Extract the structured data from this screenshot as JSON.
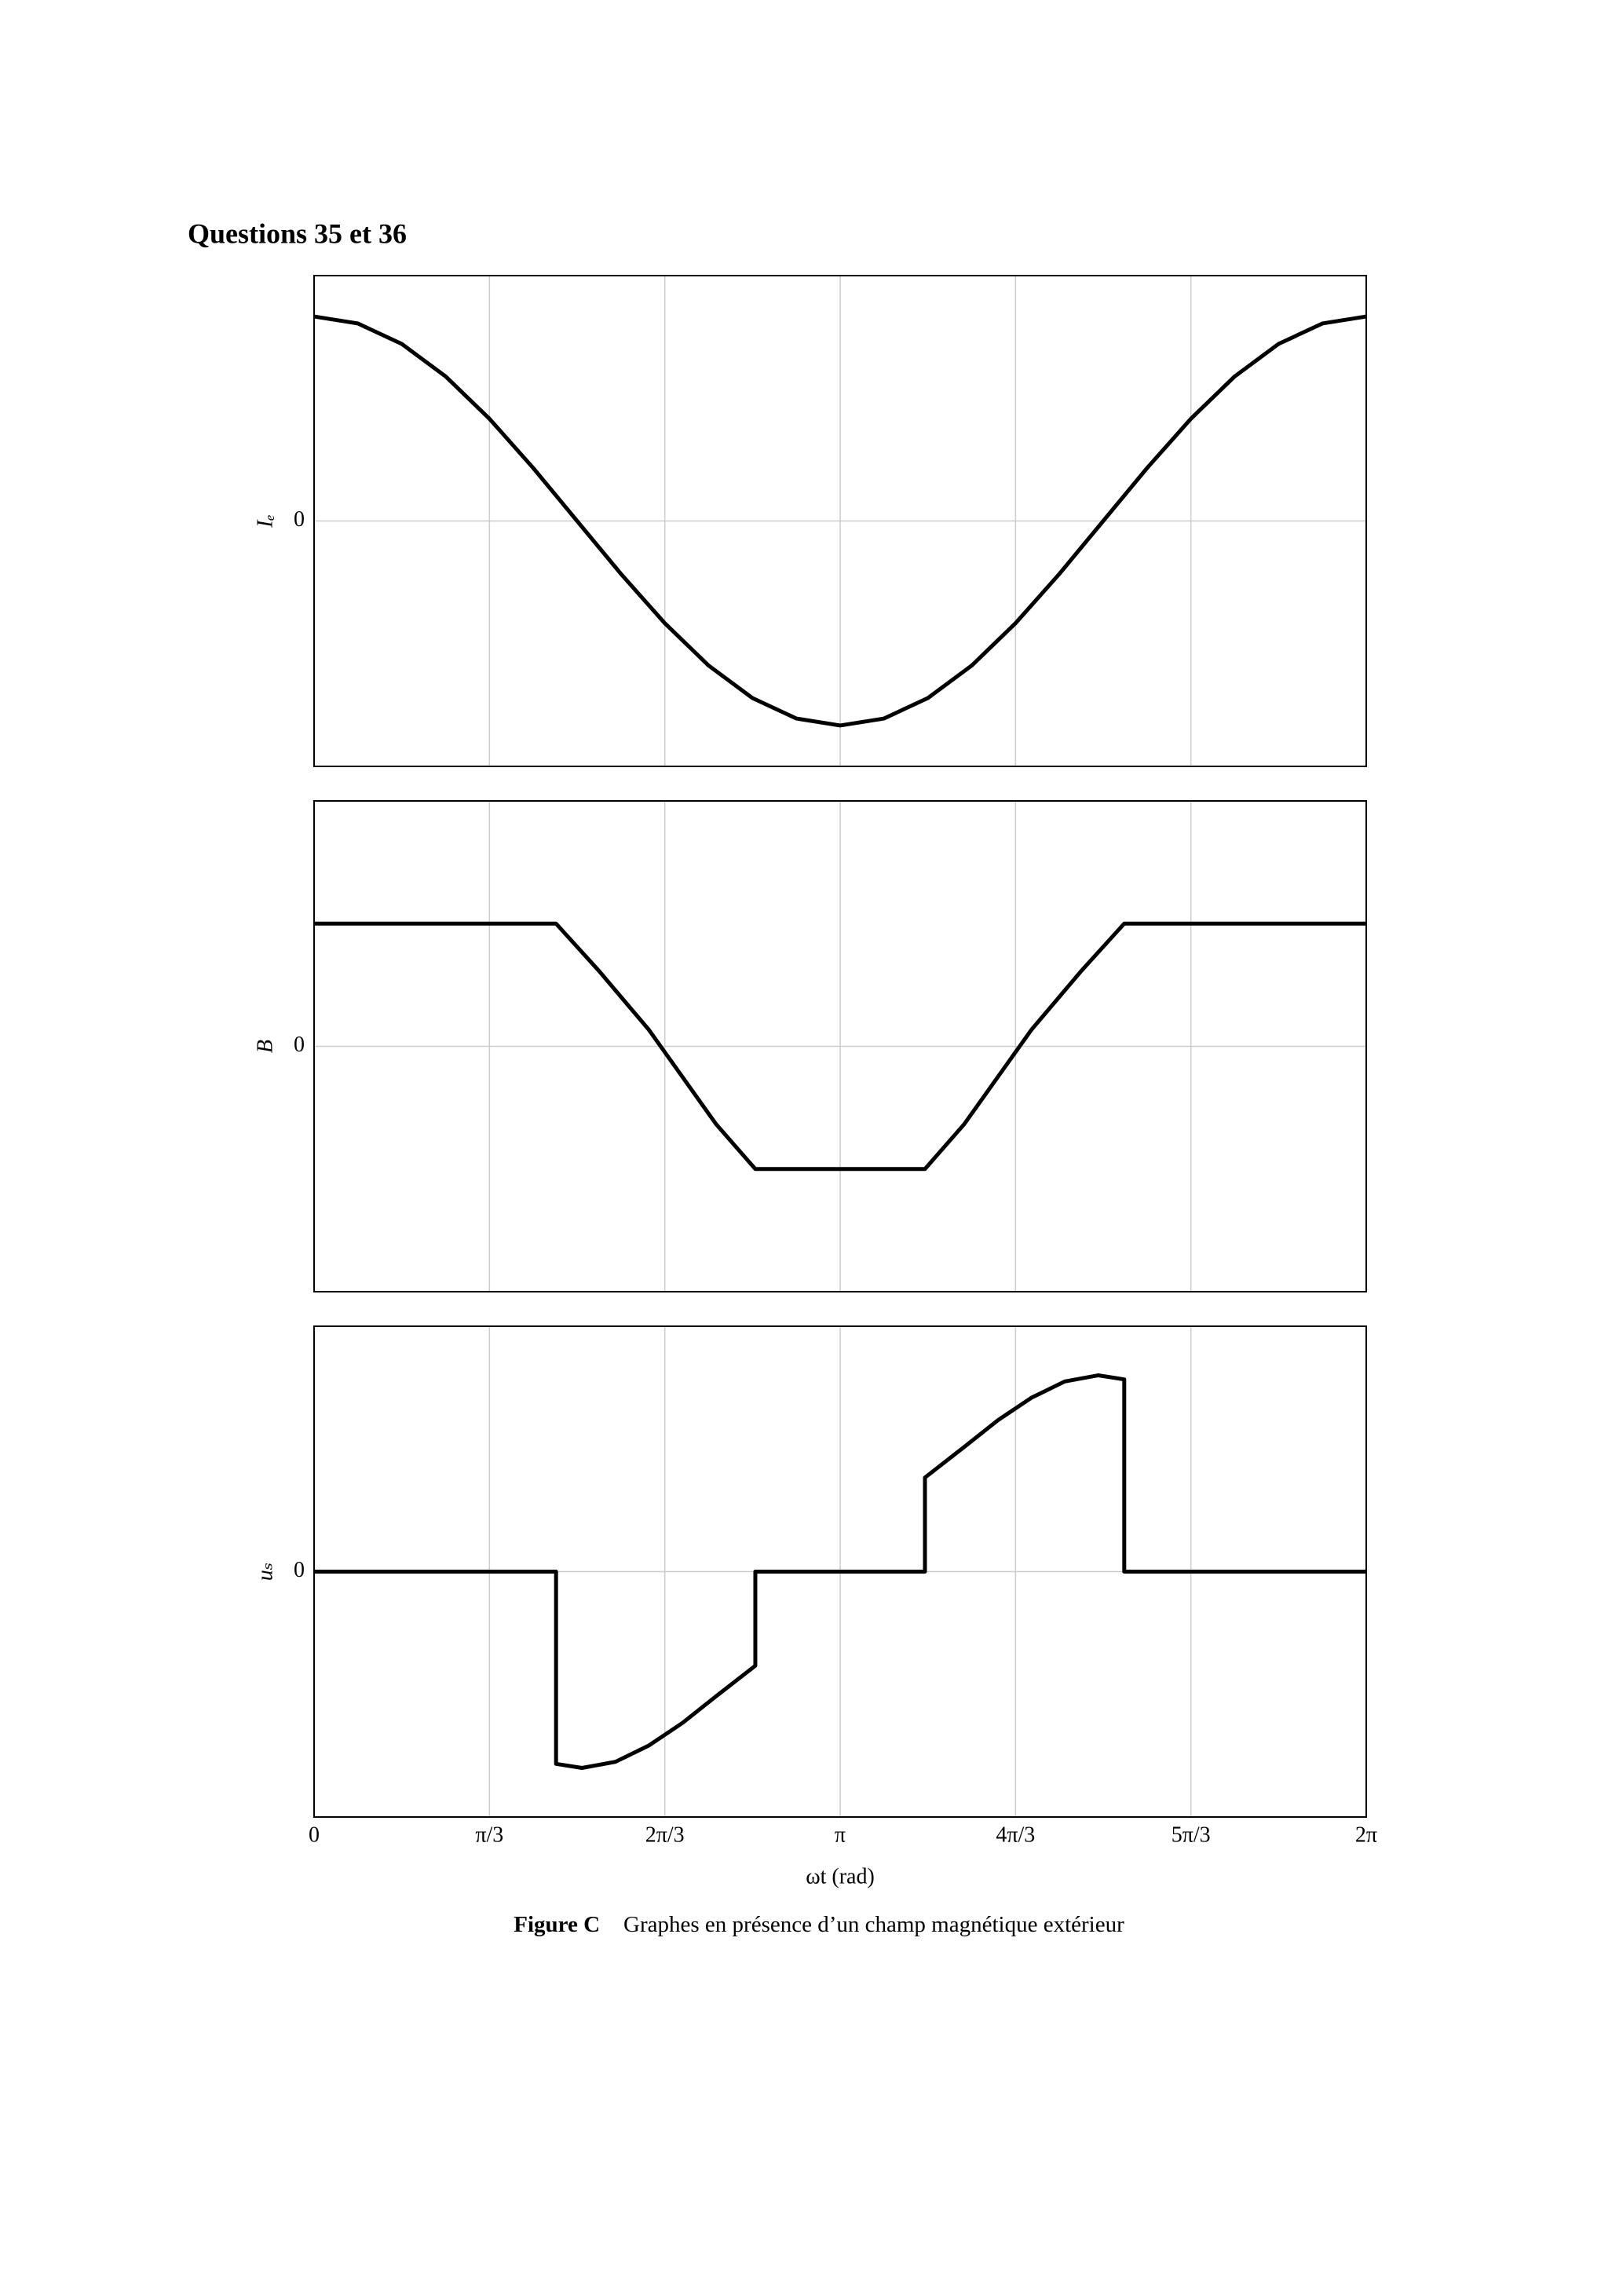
{
  "title": "Questions 35 et 36",
  "chart_data": [
    {
      "type": "line",
      "ylabel": "Iₑ",
      "color": "#000000",
      "grid": true,
      "xlim": [
        0,
        6.2832
      ],
      "ylim": [
        -1.2,
        1.2
      ],
      "yticks": [
        0
      ],
      "xticks": [
        0,
        1.0472,
        2.0944,
        3.1416,
        4.1888,
        5.236,
        6.2832
      ],
      "x": [
        0,
        0.2618,
        0.5236,
        0.7854,
        1.0472,
        1.309,
        1.5708,
        1.8326,
        2.0944,
        2.3562,
        2.618,
        2.8798,
        3.1416,
        3.4034,
        3.6652,
        3.927,
        4.1888,
        4.4506,
        4.7124,
        4.9742,
        5.236,
        5.4978,
        5.7596,
        6.0214,
        6.2832
      ],
      "values": [
        1,
        0.9659,
        0.866,
        0.7071,
        0.5,
        0.2588,
        0,
        -0.2588,
        -0.5,
        -0.7071,
        -0.866,
        -0.9659,
        -1,
        -0.9659,
        -0.866,
        -0.7071,
        -0.5,
        -0.2588,
        0,
        0.2588,
        0.5,
        0.7071,
        0.866,
        0.9659,
        1
      ]
    },
    {
      "type": "line",
      "ylabel": "B",
      "color": "#000000",
      "grid": true,
      "xlim": [
        0,
        6.2832
      ],
      "ylim": [
        -1.2,
        1.2
      ],
      "yticks": [
        0
      ],
      "xticks": [
        0,
        1.0472,
        2.0944,
        3.1416,
        4.1888,
        5.236,
        6.2832
      ],
      "x": [
        0,
        1.445,
        1.7,
        2.0,
        2.2,
        2.4,
        2.635,
        3.648,
        3.883,
        4.083,
        4.283,
        4.583,
        4.838,
        6.2832
      ],
      "values": [
        0.6,
        0.6,
        0.37,
        0.08,
        -0.15,
        -0.38,
        -0.6,
        -0.6,
        -0.38,
        -0.15,
        0.08,
        0.37,
        0.6,
        0.6
      ]
    },
    {
      "type": "line",
      "ylabel": "uₛ",
      "xlabel": "ωt (rad)",
      "color": "#000000",
      "grid": true,
      "xlim": [
        0,
        6.2832
      ],
      "ylim": [
        -1.2,
        1.2
      ],
      "yticks": [
        0
      ],
      "xticks": [
        0,
        {
          "value": 1.0472,
          "label": "π/3"
        },
        {
          "value": 2.0944,
          "label": "2π/3"
        },
        {
          "value": 3.1416,
          "label": "π"
        },
        {
          "value": 4.1888,
          "label": "4π/3"
        },
        {
          "value": 5.236,
          "label": "5π/3"
        },
        {
          "value": 6.2832,
          "label": "2π"
        }
      ],
      "x": [
        0,
        1.445,
        1.445,
        1.6,
        1.8,
        2.0,
        2.2,
        2.4,
        2.635,
        2.635,
        3.648,
        3.648,
        3.883,
        4.083,
        4.283,
        4.483,
        4.683,
        4.838,
        4.838,
        6.2832
      ],
      "values": [
        0,
        0,
        -0.94,
        -0.96,
        -0.93,
        -0.85,
        -0.74,
        -0.61,
        -0.46,
        0,
        0,
        0.46,
        0.61,
        0.74,
        0.85,
        0.93,
        0.96,
        0.94,
        0,
        0
      ]
    }
  ],
  "caption": {
    "label": "Figure C",
    "text": "Graphes en présence d’un champ magnétique extérieur"
  }
}
